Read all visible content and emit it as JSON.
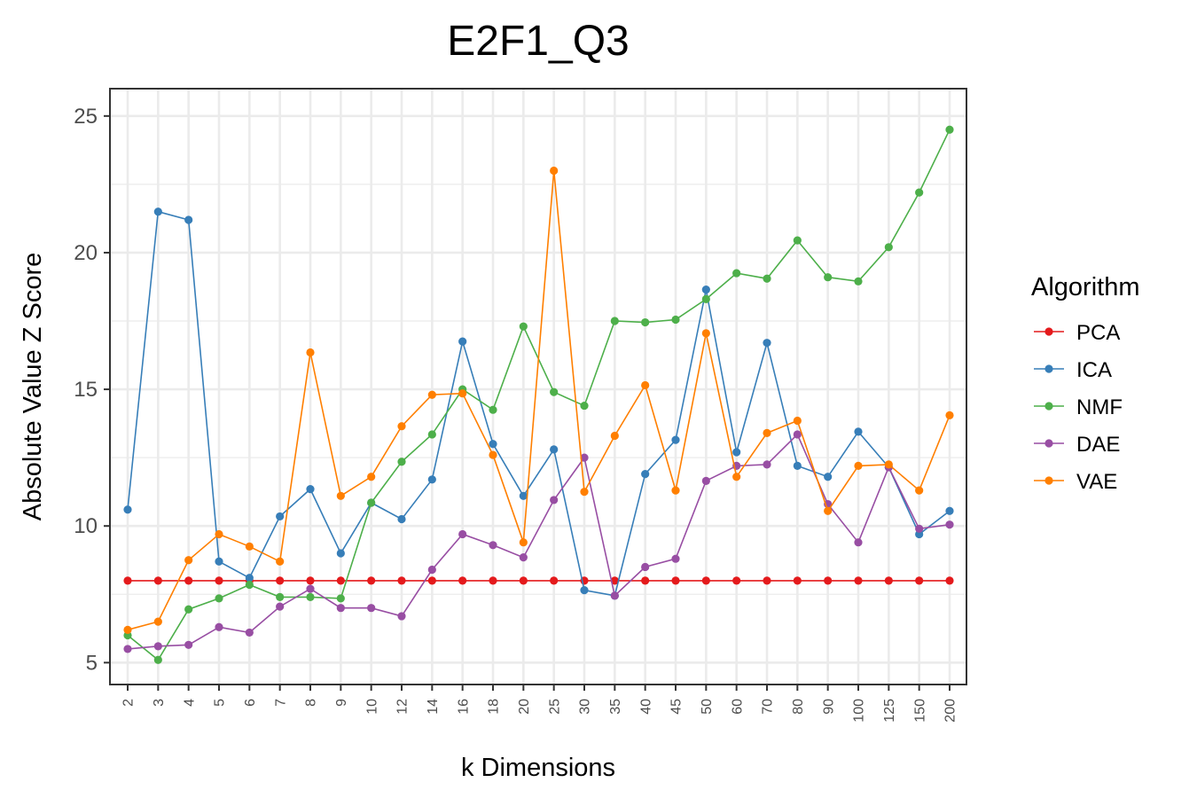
{
  "chart_data": {
    "type": "line",
    "title": "E2F1_Q3",
    "xlabel": "k Dimensions",
    "ylabel": "Absolute Value Z Score",
    "categories": [
      "2",
      "3",
      "4",
      "5",
      "6",
      "7",
      "8",
      "9",
      "10",
      "12",
      "14",
      "16",
      "18",
      "20",
      "25",
      "30",
      "35",
      "40",
      "45",
      "50",
      "60",
      "70",
      "80",
      "90",
      "100",
      "125",
      "150",
      "200"
    ],
    "yticks": [
      5,
      10,
      15,
      20,
      25
    ],
    "ylim": [
      4.2,
      26.0
    ],
    "grid": true,
    "legend": {
      "title": "Algorithm",
      "position": "right"
    },
    "series": [
      {
        "name": "PCA",
        "color": "#e41a1c",
        "values": [
          8.0,
          8.0,
          8.0,
          8.0,
          8.0,
          8.0,
          8.0,
          8.0,
          8.0,
          8.0,
          8.0,
          8.0,
          8.0,
          8.0,
          8.0,
          8.0,
          8.0,
          8.0,
          8.0,
          8.0,
          8.0,
          8.0,
          8.0,
          8.0,
          8.0,
          8.0,
          8.0,
          8.0
        ]
      },
      {
        "name": "ICA",
        "color": "#377eb8",
        "values": [
          10.6,
          21.5,
          21.2,
          8.7,
          8.1,
          10.35,
          11.35,
          9.0,
          10.85,
          10.25,
          11.7,
          16.75,
          13.0,
          11.1,
          12.8,
          7.65,
          7.45,
          11.9,
          13.15,
          18.65,
          12.7,
          16.7,
          12.2,
          11.8,
          13.45,
          12.15,
          9.7,
          10.55
        ]
      },
      {
        "name": "NMF",
        "color": "#4daf4a",
        "values": [
          6.0,
          5.1,
          6.95,
          7.35,
          7.85,
          7.4,
          7.4,
          7.35,
          10.85,
          12.35,
          13.35,
          15.0,
          14.25,
          17.3,
          14.9,
          14.4,
          17.5,
          17.45,
          17.55,
          18.3,
          19.25,
          19.05,
          20.45,
          19.1,
          18.95,
          20.2,
          22.2,
          24.5
        ]
      },
      {
        "name": "DAE",
        "color": "#984ea3",
        "values": [
          5.5,
          5.6,
          5.65,
          6.3,
          6.1,
          7.05,
          7.7,
          7.0,
          7.0,
          6.7,
          8.4,
          9.7,
          9.3,
          8.85,
          10.95,
          12.5,
          7.45,
          8.5,
          8.8,
          11.65,
          12.2,
          12.25,
          13.35,
          10.8,
          9.4,
          12.15,
          9.9,
          10.05
        ]
      },
      {
        "name": "VAE",
        "color": "#ff7f00",
        "values": [
          6.2,
          6.5,
          8.75,
          9.7,
          9.25,
          8.7,
          16.35,
          11.1,
          11.8,
          13.65,
          14.8,
          14.85,
          12.6,
          9.4,
          23.0,
          11.25,
          13.3,
          15.15,
          11.3,
          17.05,
          11.8,
          13.4,
          13.85,
          10.55,
          12.2,
          12.25,
          11.3,
          14.05
        ]
      }
    ]
  }
}
